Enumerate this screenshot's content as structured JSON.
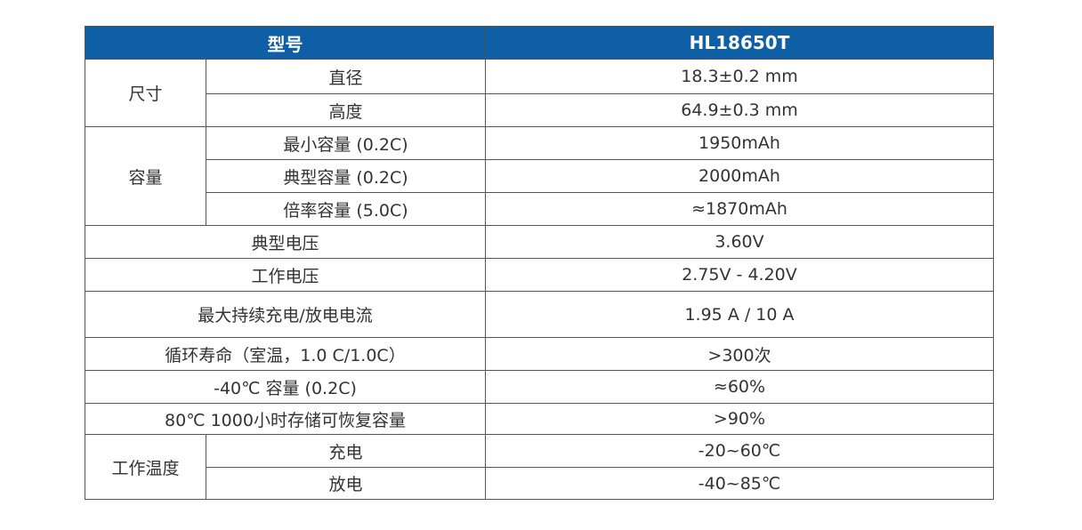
{
  "table": {
    "header": [
      "型号",
      "HL18650T"
    ],
    "rows": [
      {
        "label": "尺寸",
        "items": [
          {
            "label": "直径",
            "value": "18.3±0.2 mm"
          },
          {
            "label": "高度",
            "value": "64.9±0.3 mm"
          }
        ]
      },
      {
        "label": "容量",
        "items": [
          {
            "label": "最小容量 (0.2C)",
            "value": "1950mAh"
          },
          {
            "label": "典型容量 (0.2C)",
            "value": "2000mAh"
          },
          {
            "label": "倍率容量 (5.0C)",
            "value": "≈1870mAh"
          }
        ]
      },
      {
        "label": "典型电压",
        "value": "3.60V"
      },
      {
        "label": "工作电压",
        "value": "2.75V - 4.20V"
      },
      {
        "label": "最大持续充电/放电电流",
        "value": "1.95 A / 10 A"
      },
      {
        "label": "循环寿命（室温，1.0 C/1.0C）",
        "value": ">300次"
      },
      {
        "label": "-40℃ 容量 (0.2C)",
        "value": "≈60%"
      },
      {
        "label": "80℃ 1000小时存储可恢复容量",
        "value": ">90%"
      },
      {
        "label": "工作温度",
        "items": [
          {
            "label": "充电",
            "value": "-20~60℃"
          },
          {
            "label": "放电",
            "value": "-40~85℃"
          }
        ]
      }
    ]
  }
}
